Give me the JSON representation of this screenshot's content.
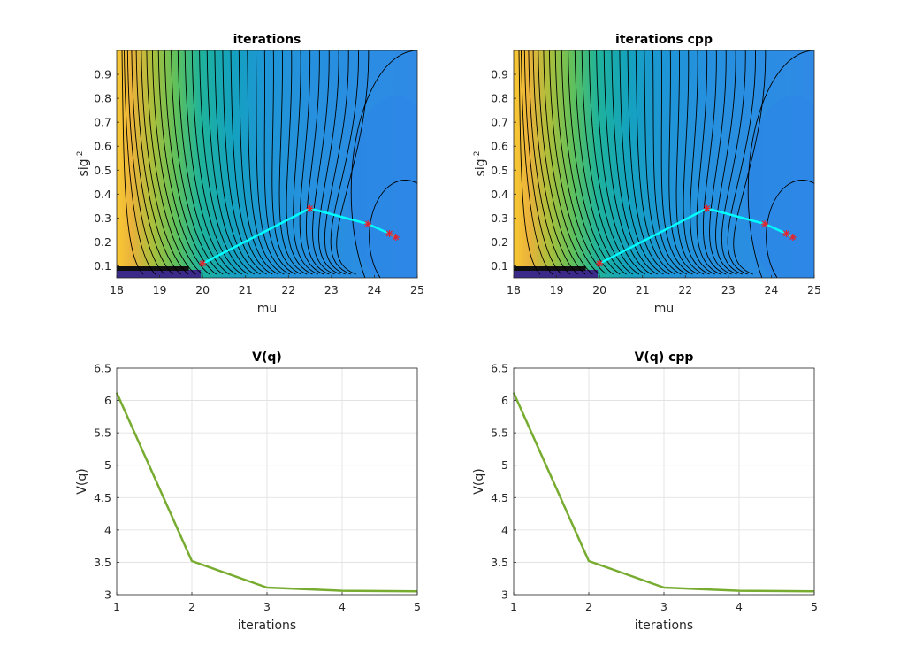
{
  "chart_data": [
    {
      "type": "contour",
      "title": "iterations",
      "xlabel": "mu",
      "ylabel": {
        "base": "sig",
        "superscript": "-2"
      },
      "xlim": [
        18,
        25
      ],
      "ylim": [
        0.05,
        1.0
      ],
      "xticks": [
        "18",
        "19",
        "20",
        "21",
        "22",
        "23",
        "24",
        "25"
      ],
      "yticks": [
        "0.1",
        "0.2",
        "0.3",
        "0.4",
        "0.5",
        "0.6",
        "0.7",
        "0.8",
        "0.9"
      ],
      "grid": false,
      "colormap": "parula",
      "path_color": "#00ffff",
      "marker_color": "#e8202a",
      "path": {
        "x": [
          20.0,
          22.5,
          23.85,
          24.35,
          24.5
        ],
        "y": [
          0.11,
          0.34,
          0.275,
          0.235,
          0.22
        ]
      }
    },
    {
      "type": "contour",
      "title": "iterations cpp",
      "xlabel": "mu",
      "ylabel": {
        "base": "sig",
        "superscript": "-2"
      },
      "xlim": [
        18,
        25
      ],
      "ylim": [
        0.05,
        1.0
      ],
      "xticks": [
        "18",
        "19",
        "20",
        "21",
        "22",
        "23",
        "24",
        "25"
      ],
      "yticks": [
        "0.1",
        "0.2",
        "0.3",
        "0.4",
        "0.5",
        "0.6",
        "0.7",
        "0.8",
        "0.9"
      ],
      "grid": false,
      "colormap": "parula",
      "path_color": "#00ffff",
      "marker_color": "#e8202a",
      "path": {
        "x": [
          20.0,
          22.5,
          23.85,
          24.35,
          24.5
        ],
        "y": [
          0.11,
          0.34,
          0.275,
          0.235,
          0.22
        ]
      }
    },
    {
      "type": "line",
      "title": "V(q)",
      "xlabel": "iterations",
      "ylabel": "V(q)",
      "xlim": [
        1,
        5
      ],
      "ylim": [
        3,
        6.5
      ],
      "xticks": [
        "1",
        "2",
        "3",
        "4",
        "5"
      ],
      "yticks": [
        "3",
        "3.5",
        "4",
        "4.5",
        "5",
        "5.5",
        "6",
        "6.5"
      ],
      "grid": true,
      "series": [
        {
          "color": "#77ac30",
          "x": [
            1,
            2,
            3,
            4,
            5
          ],
          "values": [
            6.12,
            3.52,
            3.11,
            3.06,
            3.05
          ]
        }
      ]
    },
    {
      "type": "line",
      "title": "V(q) cpp",
      "xlabel": "iterations",
      "ylabel": "V(q)",
      "xlim": [
        1,
        5
      ],
      "ylim": [
        3,
        6.5
      ],
      "xticks": [
        "1",
        "2",
        "3",
        "4",
        "5"
      ],
      "yticks": [
        "3",
        "3.5",
        "4",
        "4.5",
        "5",
        "5.5",
        "6",
        "6.5"
      ],
      "grid": true,
      "series": [
        {
          "color": "#77ac30",
          "x": [
            1,
            2,
            3,
            4,
            5
          ],
          "values": [
            6.12,
            3.52,
            3.11,
            3.06,
            3.05
          ]
        }
      ]
    }
  ]
}
